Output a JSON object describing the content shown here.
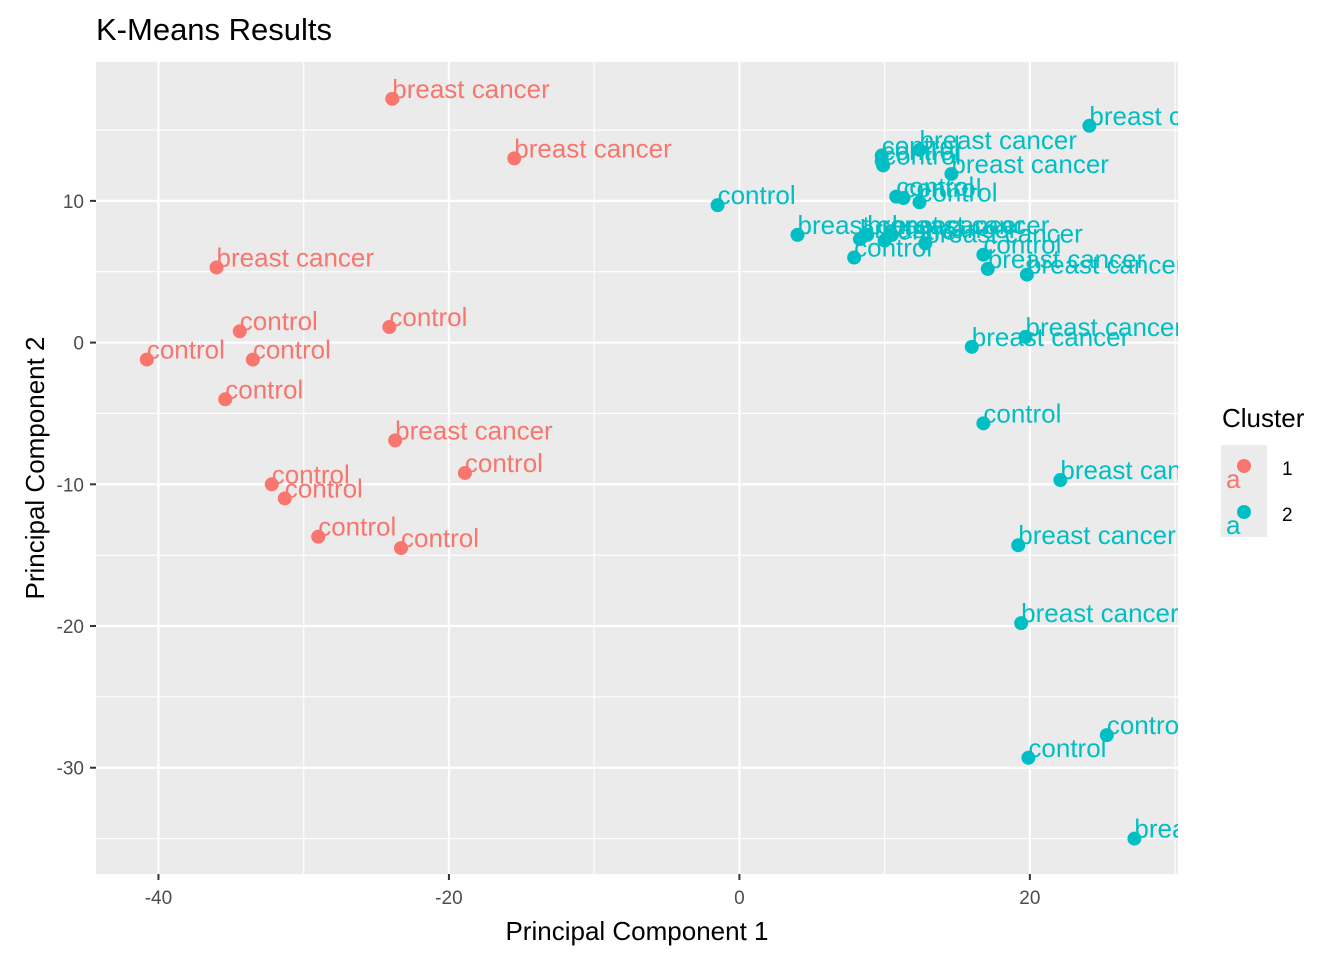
{
  "chart_data": {
    "type": "scatter",
    "title": "K-Means Results",
    "xlabel": "Principal Component 1",
    "ylabel": "Principal Component 2",
    "xlim": [
      -44.3,
      30.2
    ],
    "ylim": [
      -37.5,
      19.8
    ],
    "x_ticks": [
      -40,
      -20,
      0,
      20
    ],
    "y_ticks": [
      -30,
      -20,
      -10,
      0,
      10
    ],
    "x_tick_labels": [
      "-40",
      "-20",
      "0",
      "20"
    ],
    "y_tick_labels": [
      "-30",
      "-20",
      "-10",
      "0",
      "10"
    ],
    "grid": true,
    "legend": {
      "title": "Cluster",
      "position": "right",
      "entries": [
        {
          "label": "1",
          "color": "#F8766D"
        },
        {
          "label": "2",
          "color": "#00BFC4"
        }
      ]
    },
    "colors": {
      "cluster_1": "#F8766D",
      "cluster_2": "#00BFC4",
      "panel": "#EBEBEB",
      "grid": "#FFFFFF"
    },
    "points": [
      {
        "x": -23.9,
        "y": 17.2,
        "cluster": 1,
        "label": "breast cancer"
      },
      {
        "x": -15.5,
        "y": 13.0,
        "cluster": 1,
        "label": "breast cancer"
      },
      {
        "x": -36.0,
        "y": 5.3,
        "cluster": 1,
        "label": "breast cancer"
      },
      {
        "x": -34.4,
        "y": 0.8,
        "cluster": 1,
        "label": "control"
      },
      {
        "x": -24.1,
        "y": 1.1,
        "cluster": 1,
        "label": "control"
      },
      {
        "x": -40.8,
        "y": -1.2,
        "cluster": 1,
        "label": "control"
      },
      {
        "x": -33.5,
        "y": -1.2,
        "cluster": 1,
        "label": "control"
      },
      {
        "x": -35.4,
        "y": -4.0,
        "cluster": 1,
        "label": "control"
      },
      {
        "x": -23.7,
        "y": -6.9,
        "cluster": 1,
        "label": "breast cancer"
      },
      {
        "x": -18.9,
        "y": -9.2,
        "cluster": 1,
        "label": "control"
      },
      {
        "x": -32.2,
        "y": -10.0,
        "cluster": 1,
        "label": "control"
      },
      {
        "x": -31.3,
        "y": -11.0,
        "cluster": 1,
        "label": "control"
      },
      {
        "x": -29.0,
        "y": -13.7,
        "cluster": 1,
        "label": "control"
      },
      {
        "x": -23.3,
        "y": -14.5,
        "cluster": 1,
        "label": "control"
      },
      {
        "x": 24.1,
        "y": 15.3,
        "cluster": 2,
        "label": "breast cancer"
      },
      {
        "x": 12.4,
        "y": 13.6,
        "cluster": 2,
        "label": "breast cancer"
      },
      {
        "x": 9.8,
        "y": 13.2,
        "cluster": 2,
        "label": "control"
      },
      {
        "x": 9.8,
        "y": 12.8,
        "cluster": 2,
        "label": "control"
      },
      {
        "x": 9.9,
        "y": 12.5,
        "cluster": 2,
        "label": "control"
      },
      {
        "x": 14.6,
        "y": 11.9,
        "cluster": 2,
        "label": "breast cancer"
      },
      {
        "x": 10.8,
        "y": 10.3,
        "cluster": 2,
        "label": "control"
      },
      {
        "x": 11.3,
        "y": 10.2,
        "cluster": 2,
        "label": "control"
      },
      {
        "x": 12.4,
        "y": 9.9,
        "cluster": 2,
        "label": "control"
      },
      {
        "x": -1.5,
        "y": 9.7,
        "cluster": 2,
        "label": "control"
      },
      {
        "x": 4.0,
        "y": 7.6,
        "cluster": 2,
        "label": "breast cancer"
      },
      {
        "x": 8.3,
        "y": 7.3,
        "cluster": 2,
        "label": "breast cancer"
      },
      {
        "x": 8.8,
        "y": 7.6,
        "cluster": 2,
        "label": "breast cancer"
      },
      {
        "x": 10.0,
        "y": 7.2,
        "cluster": 2,
        "label": "control"
      },
      {
        "x": 10.5,
        "y": 7.6,
        "cluster": 2,
        "label": "breast cancer"
      },
      {
        "x": 12.8,
        "y": 7.0,
        "cluster": 2,
        "label": "breast cancer"
      },
      {
        "x": 16.8,
        "y": 6.2,
        "cluster": 2,
        "label": "control"
      },
      {
        "x": 7.9,
        "y": 6.0,
        "cluster": 2,
        "label": "control"
      },
      {
        "x": 17.1,
        "y": 5.2,
        "cluster": 2,
        "label": "breast cancer"
      },
      {
        "x": 19.8,
        "y": 4.8,
        "cluster": 2,
        "label": "breast cancer"
      },
      {
        "x": 19.7,
        "y": 0.4,
        "cluster": 2,
        "label": "breast cancer"
      },
      {
        "x": 16.0,
        "y": -0.3,
        "cluster": 2,
        "label": "breast cancer"
      },
      {
        "x": 16.8,
        "y": -5.7,
        "cluster": 2,
        "label": "control"
      },
      {
        "x": 22.1,
        "y": -9.7,
        "cluster": 2,
        "label": "breast cancer"
      },
      {
        "x": 19.2,
        "y": -14.3,
        "cluster": 2,
        "label": "breast cancer"
      },
      {
        "x": 19.4,
        "y": -19.8,
        "cluster": 2,
        "label": "breast cancer"
      },
      {
        "x": 25.3,
        "y": -27.7,
        "cluster": 2,
        "label": "control"
      },
      {
        "x": 19.9,
        "y": -29.3,
        "cluster": 2,
        "label": "control"
      },
      {
        "x": 27.2,
        "y": -35.0,
        "cluster": 2,
        "label": "breast cancer"
      }
    ]
  }
}
